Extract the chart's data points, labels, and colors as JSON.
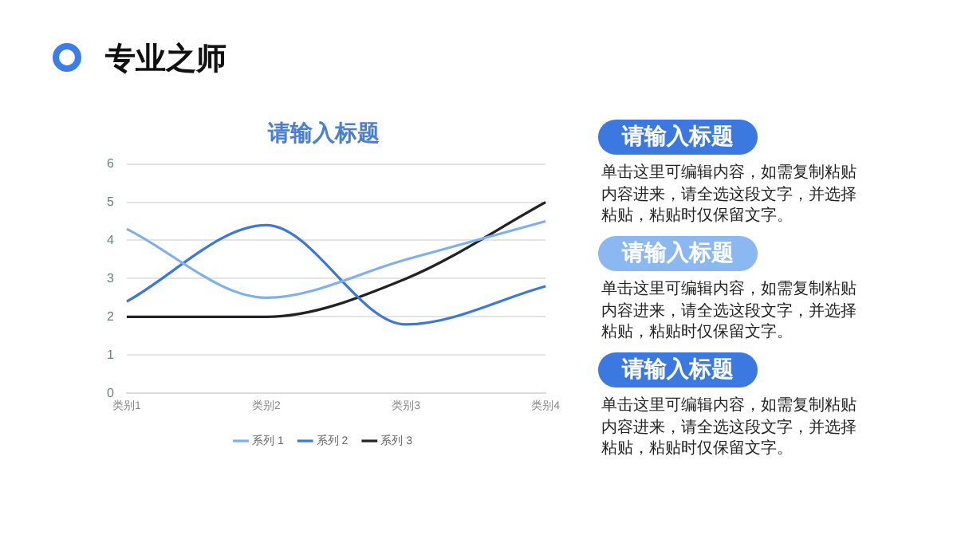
{
  "chart_data": {
    "type": "line",
    "title": "请输入标题",
    "categories": [
      "类别1",
      "类别2",
      "类别3",
      "类别4"
    ],
    "series": [
      {
        "name": "系列 1",
        "color": "#7fb0ec",
        "values": [
          4.3,
          2.5,
          3.5,
          4.5
        ]
      },
      {
        "name": "系列 2",
        "color": "#3b78d8",
        "values": [
          2.4,
          4.4,
          1.8,
          2.8
        ]
      },
      {
        "name": "系列 3",
        "color": "#222222",
        "values": [
          2,
          2,
          3,
          5
        ]
      }
    ],
    "ylim": [
      0,
      6
    ],
    "yticks": [
      0,
      1,
      2,
      3,
      4,
      5,
      6
    ],
    "grid": "y",
    "legend": "bottom",
    "marker": "none",
    "line_style": "solid",
    "annotations": [
      "专业之师",
      "请输入标题",
      "单击这里可编辑内容，如需复制粘贴内容进来，请全选这段文字，并选择粘贴，粘贴时仅保留文字。",
      "请输入标题",
      "单击这里可编辑内容，如需复制粘贴内容进来，请全选这段文字，并选择粘贴，粘贴时仅保留文字。",
      "请输入标题",
      "单击这里可编辑内容，如需复制粘贴内容进来，请全选这段文字，并选择粘贴，粘贴时仅保留文字。"
    ]
  }
}
